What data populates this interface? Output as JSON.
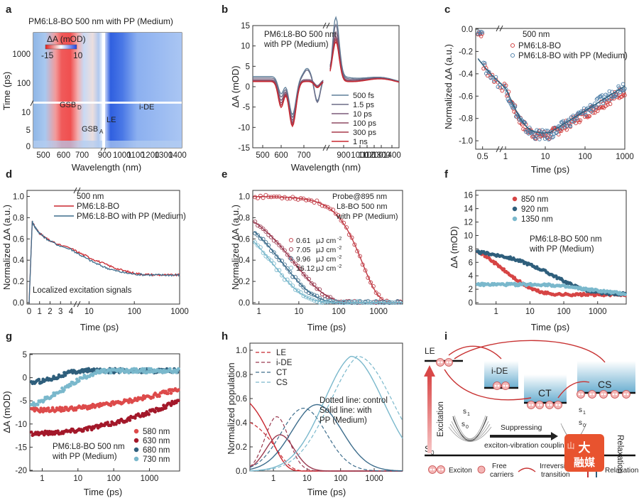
{
  "figure": {
    "panel_letters": [
      "a",
      "b",
      "c",
      "d",
      "e",
      "f",
      "g",
      "h",
      "i"
    ]
  },
  "chart_data": [
    {
      "id": "a",
      "type": "heatmap",
      "title": "PM6:L8-BO 500 nm with PP (Medium)",
      "xlabel": "Wavelength (nm)",
      "ylabel": "Time (ps)",
      "xticks": [
        "500",
        "600",
        "700",
        "900",
        "1000",
        "1100",
        "1200",
        "1300",
        "1400"
      ],
      "yticks": [
        "0",
        "5",
        "10",
        "100",
        "1000"
      ],
      "colorbar": {
        "label": "ΔA (mOD)",
        "min": -15,
        "max": 10,
        "min_label": "-15",
        "max_label": "10"
      },
      "annotations": [
        "GSB",
        "D",
        "GSB",
        "A",
        "LE",
        "i-DE"
      ]
    },
    {
      "id": "b",
      "type": "line",
      "title_lines": [
        "PM6:L8-BO 500 nm",
        "with PP (Medium)"
      ],
      "xlabel": "Wavelength (nm)",
      "ylabel": "ΔA (mOD)",
      "ylim": [
        -15,
        15
      ],
      "xticks": [
        "500",
        "600",
        "700",
        "900",
        "1000",
        "1100",
        "1200",
        "1300",
        "1400"
      ],
      "yticks": [
        "-15",
        "-10",
        "-5",
        "0",
        "5",
        "10",
        "15"
      ],
      "series": [
        {
          "name": "500 fs",
          "color": "#5f7f99"
        },
        {
          "name": "1.5 ps",
          "color": "#6b6b86"
        },
        {
          "name": "10 ps",
          "color": "#7a5a78"
        },
        {
          "name": "100 ps",
          "color": "#8f4a63"
        },
        {
          "name": "300 ps",
          "color": "#a83a4c"
        },
        {
          "name": "1 ns",
          "color": "#c8262e"
        }
      ]
    },
    {
      "id": "c",
      "type": "scatter",
      "probe_label": "500 nm",
      "xlabel": "Time (ps)",
      "ylabel": "Normalized ΔA (a.u.)",
      "ylim": [
        -1.0,
        0.0
      ],
      "xticks": [
        "0.5",
        "1",
        "10",
        "100",
        "1000"
      ],
      "yticks": [
        "-1.0",
        "-0.8",
        "-0.6",
        "-0.4",
        "-0.2",
        "0.0"
      ],
      "series": [
        {
          "name": "PM6:L8-BO",
          "color": "#d03a3a"
        },
        {
          "name": "PM6:L8-BO with PP (Medium)",
          "color": "#4d7ea8"
        }
      ]
    },
    {
      "id": "d",
      "type": "line",
      "probe_label": "500 nm",
      "note": "Localized excitation signals",
      "xlabel": "Time (ps)",
      "ylabel": "Normalized ΔA (a.u.)",
      "ylim": [
        0.0,
        1.0
      ],
      "xticks": [
        "0",
        "1",
        "2",
        "3",
        "4",
        "10",
        "100",
        "1000"
      ],
      "yticks": [
        "0.0",
        "0.2",
        "0.4",
        "0.6",
        "0.8",
        "1.0"
      ],
      "series": [
        {
          "name": "PM6:L8-BO",
          "color": "#c8262e"
        },
        {
          "name": "PM6:L8-BO with PP (Medium)",
          "color": "#3d6d8c"
        }
      ]
    },
    {
      "id": "e",
      "type": "scatter",
      "title_lines": [
        "Probe@895 nm",
        "L8-BO 500 nm",
        "with PP (Medium)"
      ],
      "xlabel": "Time (ps)",
      "ylabel": "Normalized ΔA (a.u.)",
      "ylim": [
        0.0,
        1.0
      ],
      "xticks": [
        "1",
        "10",
        "100",
        "1000"
      ],
      "yticks": [
        "0.0",
        "0.2",
        "0.4",
        "0.6",
        "0.8",
        "1.0"
      ],
      "unit": "μJ cm",
      "unit_exp": "-2",
      "series": [
        {
          "name": "0.61",
          "color": "#c03a44"
        },
        {
          "name": "7.05",
          "color": "#9a3a50"
        },
        {
          "name": "9.96",
          "color": "#3d6d8c"
        },
        {
          "name": "16.12",
          "color": "#7ab8cc"
        }
      ]
    },
    {
      "id": "f",
      "type": "scatter",
      "title_lines": [
        "PM6:L8-BO 500 nm",
        "with PP (Medium)"
      ],
      "xlabel": "Time (ps)",
      "ylabel": "ΔA (mOD)",
      "ylim": [
        0,
        16
      ],
      "xticks": [
        "1",
        "10",
        "100",
        "1000"
      ],
      "yticks": [
        "0",
        "2",
        "4",
        "6",
        "8",
        "10",
        "12",
        "14",
        "16"
      ],
      "series": [
        {
          "name": "850 nm",
          "color": "#d64545"
        },
        {
          "name": "920 nm",
          "color": "#2f5f7c"
        },
        {
          "name": "1350 nm",
          "color": "#7ab8cc"
        }
      ]
    },
    {
      "id": "g",
      "type": "scatter",
      "title_lines": [
        "PM6:L8-BO 500 nm",
        "with PP (Medium)"
      ],
      "xlabel": "Time (ps)",
      "ylabel": "ΔA (mOD)",
      "ylim": [
        -20,
        5
      ],
      "xticks": [
        "1",
        "10",
        "100",
        "1000"
      ],
      "yticks": [
        "-20",
        "-15",
        "-10",
        "-5",
        "0",
        "5"
      ],
      "series": [
        {
          "name": "580 nm",
          "color": "#dd4b4b"
        },
        {
          "name": "630 nm",
          "color": "#a3182a"
        },
        {
          "name": "680 nm",
          "color": "#2f5f7c"
        },
        {
          "name": "730 nm",
          "color": "#7ab8cc"
        }
      ]
    },
    {
      "id": "h",
      "type": "line",
      "note_lines": [
        "Dotted line: control",
        "Solid line: with",
        "PP (Medium)"
      ],
      "xlabel": "Time (ps)",
      "ylabel": "Normalized population",
      "ylim": [
        0.0,
        1.0
      ],
      "xticks": [
        "1",
        "10",
        "100",
        "1000"
      ],
      "yticks": [
        "0.0",
        "0.2",
        "0.4",
        "0.6",
        "0.8",
        "1.0"
      ],
      "series": [
        {
          "name": "LE",
          "color": "#c8262e"
        },
        {
          "name": "i-DE",
          "color": "#9a3a50"
        },
        {
          "name": "CT",
          "color": "#3d6d8c"
        },
        {
          "name": "CS",
          "color": "#7ab8cc"
        }
      ]
    }
  ],
  "diagram_i": {
    "levels": {
      "le": "LE",
      "ide": "i-DE",
      "ct": "CT",
      "cs": "CS",
      "s0": "S",
      "s0_sub": "0"
    },
    "labels": {
      "excitation": "Excitation",
      "relaxation": "Relaxation",
      "suppress_1": "Suppressing",
      "suppress_2": "exciton-vibration coupling",
      "s1": "s",
      "s1_sub": "1",
      "s0b": "s",
      "s0b_sub": "0"
    },
    "legend": {
      "exciton": "Exciton",
      "free_1": "Free",
      "free_2": "carriers",
      "irrev_1": "Irreversible",
      "irrev_2": "transition",
      "relax": "Relaxation"
    },
    "watermark": {
      "line1": "大",
      "line2": "融媒",
      "logo": "山"
    }
  }
}
